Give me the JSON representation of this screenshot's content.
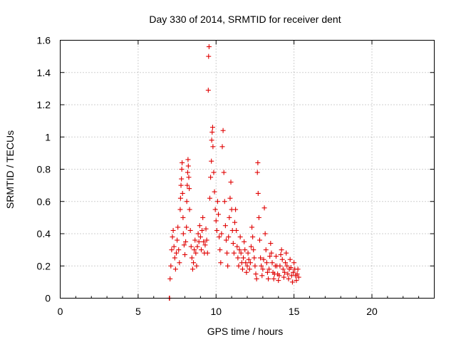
{
  "chart_data": {
    "type": "scatter",
    "title": "Day 330 of 2014, SRMTID for receiver dent",
    "xlabel": "GPS time / hours",
    "ylabel": "SRMTID / TECUs",
    "xlim": [
      0,
      24
    ],
    "ylim": [
      0,
      1.6
    ],
    "xticks": [
      0,
      5,
      10,
      15,
      20
    ],
    "xtick_labels": [
      "0",
      "5",
      "10",
      "15",
      "20"
    ],
    "yticks": [
      0,
      0.2,
      0.4,
      0.6,
      0.8,
      1.0,
      1.2,
      1.4,
      1.6
    ],
    "ytick_labels": [
      "0",
      "0.2",
      "0.4",
      "0.6",
      "0.8",
      "1",
      "1.2",
      "1.4",
      "1.6"
    ],
    "grid": true,
    "marker": "+",
    "color": "#e00000",
    "series": [
      {
        "name": "SRMTID",
        "points": [
          [
            7.0,
            0.0
          ],
          [
            7.02,
            0.0
          ],
          [
            7.05,
            0.12
          ],
          [
            7.1,
            0.2
          ],
          [
            7.15,
            0.3
          ],
          [
            7.2,
            0.38
          ],
          [
            7.25,
            0.42
          ],
          [
            7.3,
            0.32
          ],
          [
            7.35,
            0.25
          ],
          [
            7.4,
            0.18
          ],
          [
            7.45,
            0.28
          ],
          [
            7.5,
            0.36
          ],
          [
            7.55,
            0.44
          ],
          [
            7.6,
            0.3
          ],
          [
            7.65,
            0.22
          ],
          [
            7.7,
            0.55
          ],
          [
            7.72,
            0.62
          ],
          [
            7.75,
            0.7
          ],
          [
            7.78,
            0.74
          ],
          [
            7.8,
            0.8
          ],
          [
            7.82,
            0.84
          ],
          [
            7.85,
            0.65
          ],
          [
            7.88,
            0.5
          ],
          [
            7.9,
            0.4
          ],
          [
            7.95,
            0.33
          ],
          [
            8.0,
            0.27
          ],
          [
            8.05,
            0.35
          ],
          [
            8.1,
            0.44
          ],
          [
            8.12,
            0.6
          ],
          [
            8.15,
            0.7
          ],
          [
            8.18,
            0.78
          ],
          [
            8.2,
            0.86
          ],
          [
            8.22,
            0.82
          ],
          [
            8.25,
            0.75
          ],
          [
            8.28,
            0.68
          ],
          [
            8.3,
            0.55
          ],
          [
            8.35,
            0.42
          ],
          [
            8.4,
            0.32
          ],
          [
            8.45,
            0.25
          ],
          [
            8.5,
            0.18
          ],
          [
            8.55,
            0.22
          ],
          [
            8.6,
            0.3
          ],
          [
            8.65,
            0.36
          ],
          [
            8.7,
            0.28
          ],
          [
            8.75,
            0.2
          ],
          [
            8.8,
            0.32
          ],
          [
            8.85,
            0.4
          ],
          [
            8.9,
            0.35
          ],
          [
            8.95,
            0.45
          ],
          [
            9.0,
            0.38
          ],
          [
            9.05,
            0.3
          ],
          [
            9.1,
            0.42
          ],
          [
            9.15,
            0.5
          ],
          [
            9.2,
            0.35
          ],
          [
            9.25,
            0.28
          ],
          [
            9.3,
            0.33
          ],
          [
            9.35,
            0.43
          ],
          [
            9.4,
            0.36
          ],
          [
            9.45,
            0.28
          ],
          [
            9.5,
            1.29
          ],
          [
            9.52,
            1.5
          ],
          [
            9.55,
            1.56
          ],
          [
            9.6,
            0.62
          ],
          [
            9.65,
            0.75
          ],
          [
            9.7,
            0.85
          ],
          [
            9.72,
            0.98
          ],
          [
            9.75,
            1.03
          ],
          [
            9.78,
            1.06
          ],
          [
            9.8,
            0.94
          ],
          [
            9.85,
            0.78
          ],
          [
            9.9,
            0.66
          ],
          [
            9.95,
            0.55
          ],
          [
            10.0,
            0.48
          ],
          [
            10.05,
            0.42
          ],
          [
            10.1,
            0.6
          ],
          [
            10.15,
            0.52
          ],
          [
            10.2,
            0.38
          ],
          [
            10.25,
            0.3
          ],
          [
            10.3,
            0.22
          ],
          [
            10.35,
            0.4
          ],
          [
            10.4,
            0.94
          ],
          [
            10.45,
            1.04
          ],
          [
            10.5,
            0.78
          ],
          [
            10.55,
            0.6
          ],
          [
            10.6,
            0.45
          ],
          [
            10.65,
            0.36
          ],
          [
            10.7,
            0.28
          ],
          [
            10.75,
            0.2
          ],
          [
            10.8,
            0.38
          ],
          [
            10.85,
            0.5
          ],
          [
            10.9,
            0.62
          ],
          [
            10.95,
            0.72
          ],
          [
            11.0,
            0.55
          ],
          [
            11.05,
            0.42
          ],
          [
            11.1,
            0.34
          ],
          [
            11.15,
            0.28
          ],
          [
            11.2,
            0.47
          ],
          [
            11.25,
            0.55
          ],
          [
            11.3,
            0.42
          ],
          [
            11.35,
            0.32
          ],
          [
            11.4,
            0.25
          ],
          [
            11.45,
            0.2
          ],
          [
            11.5,
            0.3
          ],
          [
            11.55,
            0.38
          ],
          [
            11.6,
            0.28
          ],
          [
            11.65,
            0.22
          ],
          [
            11.7,
            0.18
          ],
          [
            11.75,
            0.25
          ],
          [
            11.8,
            0.35
          ],
          [
            11.85,
            0.3
          ],
          [
            11.9,
            0.22
          ],
          [
            11.95,
            0.16
          ],
          [
            12.0,
            0.2
          ],
          [
            12.05,
            0.28
          ],
          [
            12.1,
            0.24
          ],
          [
            12.15,
            0.18
          ],
          [
            12.2,
            0.22
          ],
          [
            12.25,
            0.32
          ],
          [
            12.3,
            0.44
          ],
          [
            12.35,
            0.38
          ],
          [
            12.4,
            0.3
          ],
          [
            12.45,
            0.25
          ],
          [
            12.5,
            0.2
          ],
          [
            12.55,
            0.15
          ],
          [
            12.6,
            0.12
          ],
          [
            12.65,
            0.78
          ],
          [
            12.68,
            0.84
          ],
          [
            12.7,
            0.65
          ],
          [
            12.75,
            0.5
          ],
          [
            12.8,
            0.36
          ],
          [
            12.85,
            0.25
          ],
          [
            12.9,
            0.2
          ],
          [
            12.95,
            0.14
          ],
          [
            13.0,
            0.18
          ],
          [
            13.05,
            0.24
          ],
          [
            13.1,
            0.56
          ],
          [
            13.15,
            0.4
          ],
          [
            13.2,
            0.3
          ],
          [
            13.25,
            0.22
          ],
          [
            13.3,
            0.16
          ],
          [
            13.35,
            0.12
          ],
          [
            13.4,
            0.18
          ],
          [
            13.45,
            0.26
          ],
          [
            13.5,
            0.34
          ],
          [
            13.55,
            0.28
          ],
          [
            13.6,
            0.22
          ],
          [
            13.65,
            0.16
          ],
          [
            13.7,
            0.12
          ],
          [
            13.75,
            0.15
          ],
          [
            13.8,
            0.2
          ],
          [
            13.85,
            0.26
          ],
          [
            13.9,
            0.2
          ],
          [
            13.95,
            0.15
          ],
          [
            14.0,
            0.11
          ],
          [
            14.05,
            0.14
          ],
          [
            14.1,
            0.2
          ],
          [
            14.15,
            0.27
          ],
          [
            14.2,
            0.3
          ],
          [
            14.25,
            0.24
          ],
          [
            14.3,
            0.18
          ],
          [
            14.35,
            0.13
          ],
          [
            14.4,
            0.16
          ],
          [
            14.45,
            0.22
          ],
          [
            14.5,
            0.28
          ],
          [
            14.55,
            0.2
          ],
          [
            14.6,
            0.15
          ],
          [
            14.65,
            0.12
          ],
          [
            14.7,
            0.18
          ],
          [
            14.75,
            0.24
          ],
          [
            14.8,
            0.19
          ],
          [
            14.85,
            0.14
          ],
          [
            14.9,
            0.1
          ],
          [
            14.95,
            0.16
          ],
          [
            15.0,
            0.22
          ],
          [
            15.05,
            0.18
          ],
          [
            15.1,
            0.14
          ],
          [
            15.15,
            0.11
          ],
          [
            15.2,
            0.15
          ],
          [
            15.25,
            0.18
          ],
          [
            15.3,
            0.13
          ]
        ]
      }
    ]
  }
}
